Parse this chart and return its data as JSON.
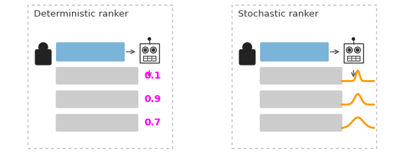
{
  "left_title": "Deterministic ranker",
  "right_title": "Stochastic ranker",
  "blue_bar_color": "#7ab4d8",
  "gray_bar_color": "#cccccc",
  "magenta_color": "#ff00ff",
  "orange_color": "#ff9900",
  "scores": [
    "0.1",
    "0.9",
    "0.7"
  ],
  "figure_bg": "#ffffff",
  "panel_bg": "#ffffff",
  "border_color": "#bbbbbb",
  "text_color": "#333333",
  "title_fontsize": 9.5,
  "score_fontsize": 10
}
